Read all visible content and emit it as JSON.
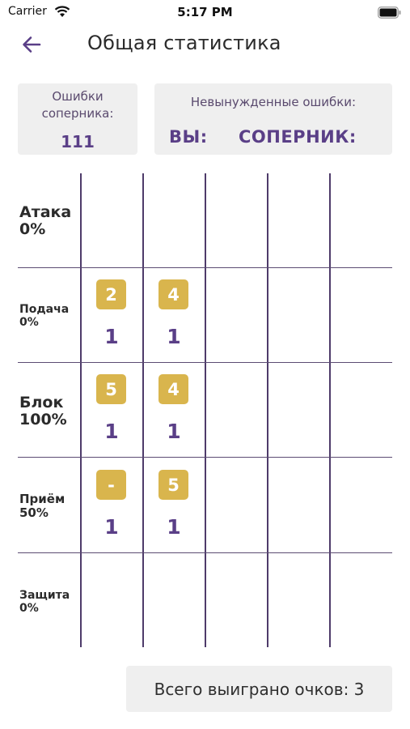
{
  "status_bar": {
    "carrier": "Carrier",
    "time": "5:17 PM"
  },
  "header": {
    "title": "Общая статистика",
    "back_icon": "arrow-left-icon"
  },
  "opponent_errors": {
    "label": "Ошибки соперника:",
    "value": "111"
  },
  "unforced_errors": {
    "label": "Невынужденные ошибки:",
    "you_label": "ВЫ:",
    "opponent_label": "СОПЕРНИК:"
  },
  "rows": [
    {
      "name": "Атака",
      "percent": "0%",
      "cells": []
    },
    {
      "name": "Подача",
      "percent": "0%",
      "cells": [
        {
          "badge": "2",
          "count": "1"
        },
        {
          "badge": "4",
          "count": "1"
        }
      ]
    },
    {
      "name": "Блок",
      "percent": "100%",
      "cells": [
        {
          "badge": "5",
          "count": "1"
        },
        {
          "badge": "4",
          "count": "1"
        }
      ]
    },
    {
      "name": "Приём",
      "percent": "50%",
      "cells": [
        {
          "badge": "-",
          "count": "1"
        },
        {
          "badge": "5",
          "count": "1"
        }
      ]
    },
    {
      "name": "Защита",
      "percent": "0%",
      "cells": []
    }
  ],
  "total": {
    "text": "Всего выиграно очков: 3"
  },
  "colors": {
    "accent": "#5a3f87",
    "badge": "#d9b54d",
    "card_bg": "#efefef",
    "grid_line": "#4e3b6a"
  }
}
